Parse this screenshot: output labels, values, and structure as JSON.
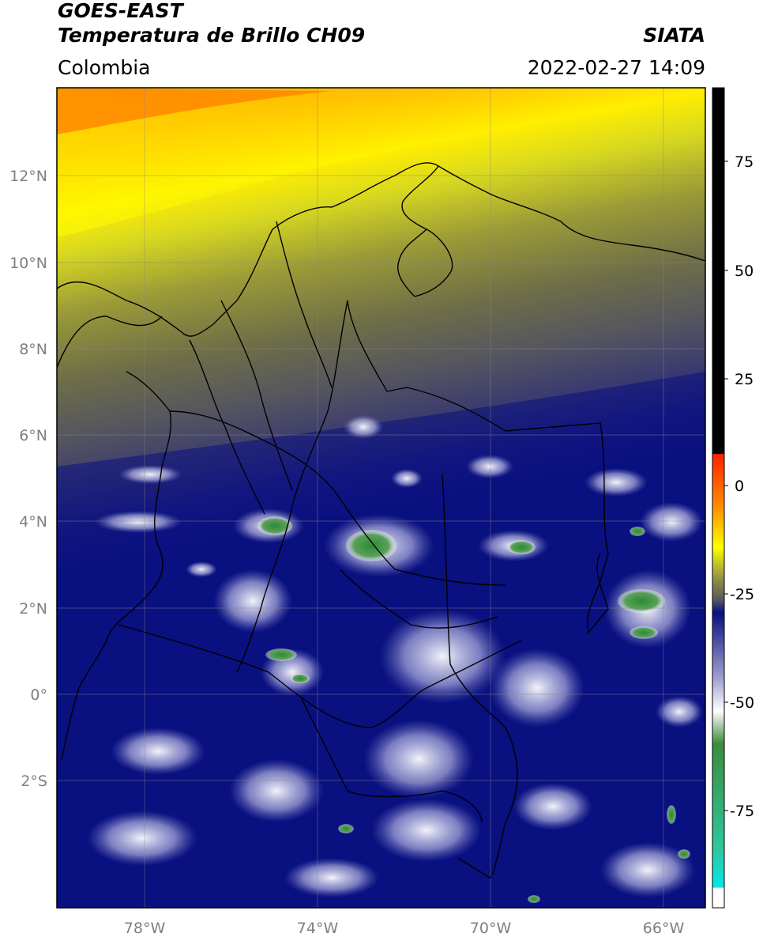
{
  "header": {
    "title_line1": "GOES-EAST",
    "title_line2": "Temperatura de Brillo CH09",
    "brand": "SIATA",
    "region": "Colombia",
    "datetime": "2022-02-27 14:09"
  },
  "map": {
    "lat_labels": [
      "12°N",
      "10°N",
      "8°N",
      "6°N",
      "4°N",
      "2°N",
      "0°",
      "2°S"
    ],
    "lon_labels": [
      "78°W",
      "74°W",
      "70°W",
      "66°W"
    ],
    "background_colors": {
      "warm": "#ff8c00",
      "yellow": "#ffff00",
      "olive": "#7a7a36",
      "gray": "#555560",
      "navy": "#0a1080",
      "cloud_white": "#e8e8f4",
      "cloud_green": "#3c8c3c"
    }
  },
  "colorbar": {
    "ticks": [
      "75",
      "50",
      "25",
      "0",
      "-25",
      "-50",
      "-75"
    ],
    "stops": [
      {
        "value": 90,
        "color": "#000000"
      },
      {
        "value": 8,
        "color": "#000000"
      },
      {
        "value": 7,
        "color": "#ff2000"
      },
      {
        "value": -5,
        "color": "#ff8c00"
      },
      {
        "value": -14,
        "color": "#ffff00"
      },
      {
        "value": -20,
        "color": "#9a9a40"
      },
      {
        "value": -25,
        "color": "#555560"
      },
      {
        "value": -30,
        "color": "#0a1080"
      },
      {
        "value": -45,
        "color": "#a0a0d0"
      },
      {
        "value": -52,
        "color": "#ffffff"
      },
      {
        "value": -60,
        "color": "#3c8c3c"
      },
      {
        "value": -85,
        "color": "#2ec8a0"
      },
      {
        "value": -92,
        "color": "#00e8e8"
      },
      {
        "value": -95,
        "color": "#ffffff"
      }
    ]
  }
}
